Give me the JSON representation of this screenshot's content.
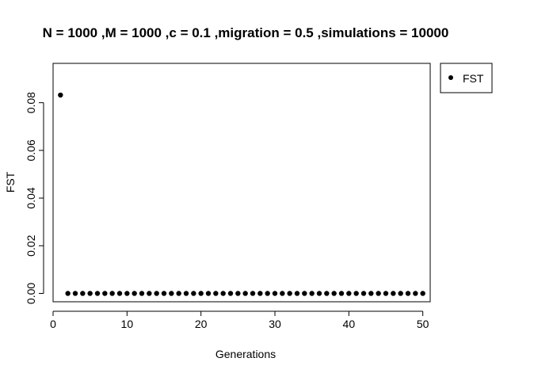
{
  "chart_data": {
    "type": "scatter",
    "title": "N = 1000 ,M = 1000 ,c = 0.1 ,migration = 0.5 ,simulations = 10000",
    "xlabel": "Generations",
    "ylabel": "FST",
    "xlim": [
      0,
      51
    ],
    "ylim": [
      -0.0035,
      0.0965
    ],
    "xticks": [
      0,
      10,
      20,
      30,
      40,
      50
    ],
    "yticks": [
      0.0,
      0.02,
      0.04,
      0.06,
      0.08
    ],
    "ytick_labels": [
      "0.00",
      "0.02",
      "0.04",
      "0.06",
      "0.08"
    ],
    "grid": false,
    "legend": {
      "position": "outside-top-right",
      "entries": [
        "FST"
      ]
    },
    "series": [
      {
        "name": "FST",
        "color": "#000000",
        "x": [
          1,
          2,
          3,
          4,
          5,
          6,
          7,
          8,
          9,
          10,
          11,
          12,
          13,
          14,
          15,
          16,
          17,
          18,
          19,
          20,
          21,
          22,
          23,
          24,
          25,
          26,
          27,
          28,
          29,
          30,
          31,
          32,
          33,
          34,
          35,
          36,
          37,
          38,
          39,
          40,
          41,
          42,
          43,
          44,
          45,
          46,
          47,
          48,
          49,
          50
        ],
        "y": [
          0.0832,
          0,
          0,
          0,
          0,
          0,
          0,
          0,
          0,
          0,
          0,
          0,
          0,
          0,
          0,
          0,
          0,
          0,
          0,
          0,
          0,
          0,
          0,
          0,
          0,
          0,
          0,
          0,
          0,
          0,
          0,
          0,
          0,
          0,
          0,
          0,
          0,
          0,
          0,
          0,
          0,
          0,
          0,
          0,
          0,
          0,
          0,
          0,
          0,
          0
        ]
      }
    ]
  }
}
